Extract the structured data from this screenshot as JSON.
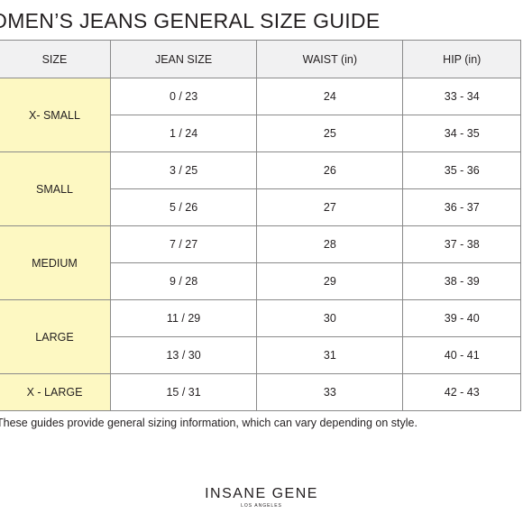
{
  "title": "OMEN’S JEANS GENERAL SIZE GUIDE",
  "table": {
    "headers": [
      "SIZE",
      "JEAN SIZE",
      "WAIST (in)",
      "HIP (in)"
    ],
    "groups": [
      {
        "size": "X- SMALL",
        "rows": [
          {
            "jean": "0 / 23",
            "waist": "24",
            "hip": "33 - 34"
          },
          {
            "jean": "1 / 24",
            "waist": "25",
            "hip": "34 - 35"
          }
        ]
      },
      {
        "size": "SMALL",
        "rows": [
          {
            "jean": "3 / 25",
            "waist": "26",
            "hip": "35 - 36"
          },
          {
            "jean": "5 / 26",
            "waist": "27",
            "hip": "36 - 37"
          }
        ]
      },
      {
        "size": "MEDIUM",
        "rows": [
          {
            "jean": "7 / 27",
            "waist": "28",
            "hip": "37 - 38"
          },
          {
            "jean": "9 / 28",
            "waist": "29",
            "hip": "38 - 39"
          }
        ]
      },
      {
        "size": "LARGE",
        "rows": [
          {
            "jean": "11 / 29",
            "waist": "30",
            "hip": "39 - 40"
          },
          {
            "jean": "13 / 30",
            "waist": "31",
            "hip": "40 - 41"
          }
        ]
      },
      {
        "size": "X - LARGE",
        "rows": [
          {
            "jean": "15 / 31",
            "waist": "33",
            "hip": "42 - 43"
          }
        ]
      }
    ]
  },
  "note": "These guides provide general sizing information, which can vary depending on style.",
  "logo": {
    "main": "INSANE GENE",
    "sub": "LOS ANGELES"
  },
  "colors": {
    "size_cell_bg": "#fdf8c2",
    "header_bg": "#f1f1f2",
    "border": "#8a8a8a"
  }
}
